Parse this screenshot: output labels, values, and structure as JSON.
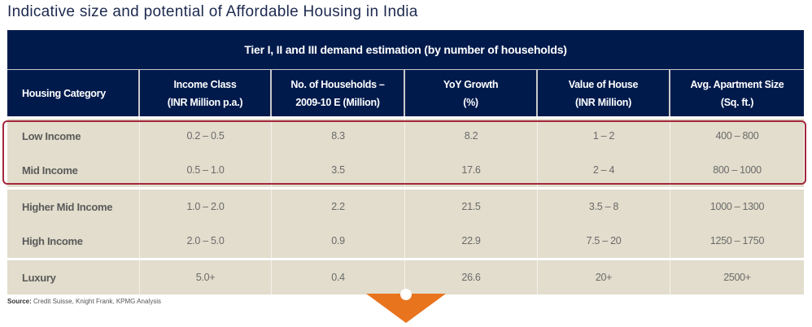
{
  "title": "Indicative size and potential of Affordable Housing in India",
  "table": {
    "band_title": "Tier I, II and III demand estimation (by number of households)",
    "headers": [
      {
        "line1": "Housing Category",
        "line2": ""
      },
      {
        "line1": "Income Class",
        "line2": "(INR Million p.a.)"
      },
      {
        "line1": "No. of Households –",
        "line2": "2009-10 E (Million)"
      },
      {
        "line1": "YoY Growth",
        "line2": "(%)"
      },
      {
        "line1": "Value of House",
        "line2": "(INR Million)"
      },
      {
        "line1": "Avg. Apartment Size",
        "line2": "(Sq. ft.)"
      }
    ],
    "rows": [
      {
        "category": "Low Income",
        "income_class": "0.2 – 0.5",
        "households": "8.3",
        "yoy_growth": "8.2",
        "house_value": "1 – 2",
        "apartment_size": "400 – 800"
      },
      {
        "category": "Mid Income",
        "income_class": "0.5 – 1.0",
        "households": "3.5",
        "yoy_growth": "17.6",
        "house_value": "2 – 4",
        "apartment_size": "800 – 1000"
      },
      {
        "category": "Higher Mid Income",
        "income_class": "1.0 – 2.0",
        "households": "2.2",
        "yoy_growth": "21.5",
        "house_value": "3.5 – 8",
        "apartment_size": "1000 – 1300"
      },
      {
        "category": "High Income",
        "income_class": "2.0 – 5.0",
        "households": "0.9",
        "yoy_growth": "22.9",
        "house_value": "7.5 – 20",
        "apartment_size": "1250 – 1750"
      },
      {
        "category": "Luxury",
        "income_class": "5.0+",
        "households": "0.4",
        "yoy_growth": "26.6",
        "house_value": "20+",
        "apartment_size": "2500+"
      }
    ],
    "highlighted_rows": [
      "Low Income",
      "Mid Income"
    ]
  },
  "source": {
    "label": "Source:",
    "text": " Credit Suisse, Knight Frank, KPMG Analysis"
  },
  "colors": {
    "header_bg": "#001a4c",
    "row_bg": "#e2ddcc",
    "highlight_border": "#a3283c",
    "arrow": "#e8741e"
  }
}
